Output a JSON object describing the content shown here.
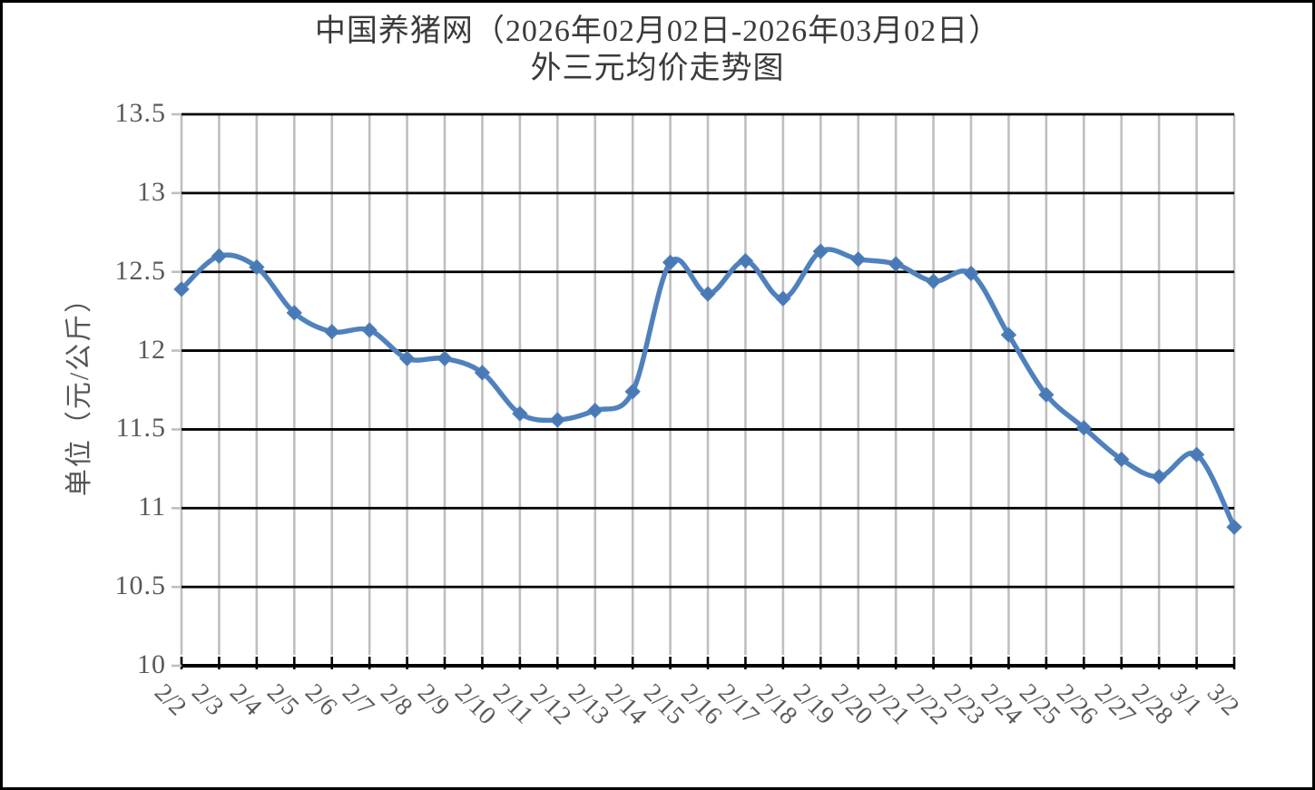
{
  "title": {
    "line1": "中国养猪网（2026年02月02日-2026年03月02日）",
    "line2": "外三元均价走势图"
  },
  "y_axis": {
    "title": "单位（元/公斤）",
    "tick_labels": [
      "13.5",
      "13",
      "12.5",
      "12",
      "11.5",
      "11",
      "10.5",
      "10"
    ]
  },
  "colors": {
    "series_line": "#4f81bd",
    "marker_fill": "#4a7ab5",
    "horizontal_grid": "#000000",
    "vertical_grid": "#bfbfbf",
    "tick_label_text": "#595959",
    "title_text": "#3a3a3a"
  },
  "chart_data": {
    "type": "line",
    "title": "中国养猪网（2026年02月02日-2026年03月02日） 外三元均价走势图",
    "xlabel": "",
    "ylabel": "单位（元/公斤）",
    "ylim": [
      10,
      13.5
    ],
    "y_tick_step": 0.5,
    "grid": "horizontal black lines + vertical gray lines, legend off",
    "legend_position": "none",
    "line_style": "smoothed, diamond markers",
    "categories": [
      "2/2",
      "2/3",
      "2/4",
      "2/5",
      "2/6",
      "2/7",
      "2/8",
      "2/9",
      "2/10",
      "2/11",
      "2/12",
      "2/13",
      "2/14",
      "2/15",
      "2/16",
      "2/17",
      "2/18",
      "2/19",
      "2/20",
      "2/21",
      "2/22",
      "2/23",
      "2/24",
      "2/25",
      "2/26",
      "2/27",
      "2/28",
      "3/1",
      "3/2"
    ],
    "series": [
      {
        "name": "外三元均价",
        "values": [
          12.39,
          12.6,
          12.53,
          12.24,
          12.12,
          12.13,
          11.95,
          11.95,
          11.86,
          11.6,
          11.56,
          11.62,
          11.74,
          12.56,
          12.36,
          12.57,
          12.33,
          12.63,
          12.58,
          12.55,
          12.44,
          12.49,
          12.1,
          11.72,
          11.51,
          11.31,
          11.2,
          11.34,
          10.88
        ]
      }
    ]
  }
}
